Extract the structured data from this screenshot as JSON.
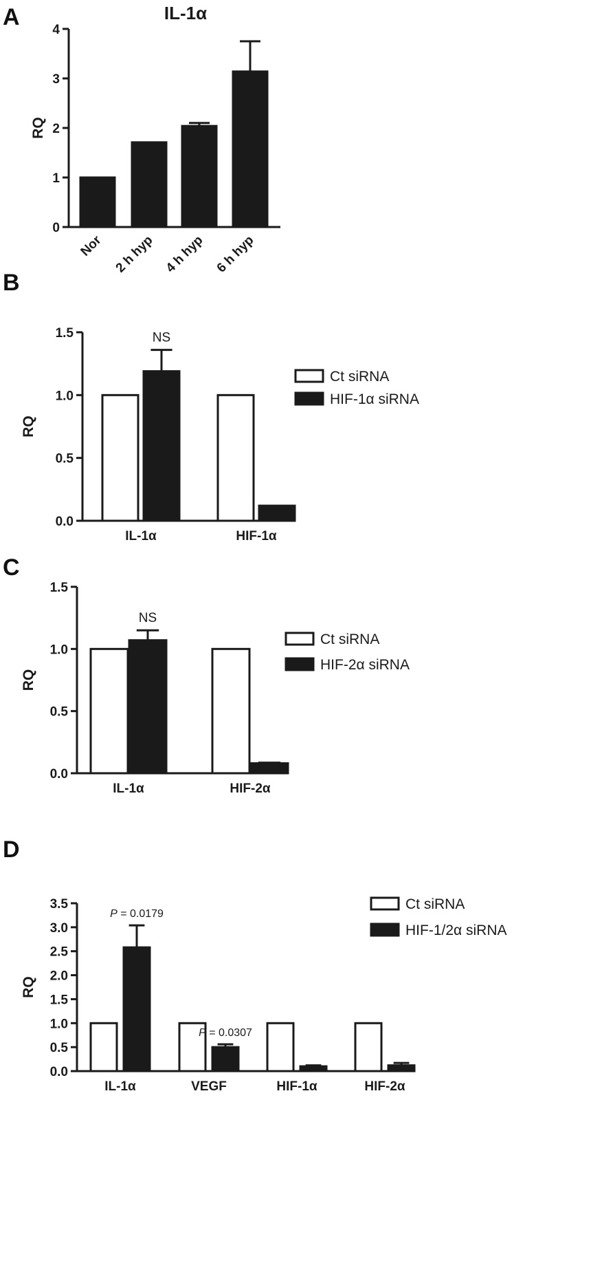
{
  "panels": {
    "A": "A",
    "B": "B",
    "C": "C",
    "D": "D"
  },
  "chart_data": [
    {
      "panel": "A",
      "type": "bar",
      "title": "IL-1α",
      "ylabel": "RQ",
      "xlabel": "",
      "ylim": [
        0,
        4
      ],
      "yticks": [
        "0",
        "1",
        "2",
        "3",
        "4"
      ],
      "categories": [
        "Nor",
        "2 h hyp",
        "4 h hyp",
        "6 h hyp"
      ],
      "category_label_rotation": "rotated 45°",
      "series": [
        {
          "values": [
            1.0,
            1.71,
            2.04,
            3.14
          ],
          "errors": [
            0,
            0,
            0.06,
            0.61
          ],
          "fill": "#1a1a1a"
        }
      ],
      "grid": false
    },
    {
      "panel": "B",
      "type": "bar",
      "title": "",
      "ylabel": "RQ",
      "ylim": [
        0,
        1.5
      ],
      "yticks": [
        "0.0",
        "0.5",
        "1.0",
        "1.5"
      ],
      "categories": [
        "IL-1α",
        "HIF-1α"
      ],
      "series": [
        {
          "name": "Ct siRNA",
          "values": [
            1.0,
            1.0
          ],
          "errors": [
            0,
            0
          ],
          "fill": "#ffffff"
        },
        {
          "name": "HIF-1α siRNA",
          "values": [
            1.19,
            0.12
          ],
          "errors": [
            0.17,
            0
          ],
          "fill": "#1a1a1a"
        }
      ],
      "annotations": [
        {
          "text": "NS",
          "category": "IL-1α",
          "series": 1
        }
      ],
      "legend": "right",
      "grid": false
    },
    {
      "panel": "C",
      "type": "bar",
      "title": "",
      "ylabel": "RQ",
      "ylim": [
        0,
        1.5
      ],
      "yticks": [
        "0.0",
        "0.5",
        "1.0",
        "1.5"
      ],
      "categories": [
        "IL-1α",
        "HIF-2α"
      ],
      "series": [
        {
          "name": "Ct siRNA",
          "values": [
            1.0,
            1.0
          ],
          "errors": [
            0,
            0
          ],
          "fill": "#ffffff"
        },
        {
          "name": "HIF-2α siRNA",
          "values": [
            1.07,
            0.08
          ],
          "errors": [
            0.08,
            0.005
          ],
          "fill": "#1a1a1a"
        }
      ],
      "annotations": [
        {
          "text": "NS",
          "category": "IL-1α",
          "series": 1
        }
      ],
      "legend": "right",
      "grid": false
    },
    {
      "panel": "D",
      "type": "bar",
      "title": "",
      "ylabel": "RQ",
      "ylim": [
        0,
        3.5
      ],
      "yticks": [
        "0.0",
        "0.5",
        "1.0",
        "1.5",
        "2.0",
        "2.5",
        "3.0",
        "3.5"
      ],
      "categories": [
        "IL-1α",
        "VEGF",
        "HIF-1α",
        "HIF-2α"
      ],
      "series": [
        {
          "name": "Ct siRNA",
          "values": [
            1.0,
            1.0,
            1.0,
            1.0
          ],
          "errors": [
            0,
            0,
            0,
            0
          ],
          "fill": "#ffffff"
        },
        {
          "name": "HIF-1/2α siRNA",
          "values": [
            2.58,
            0.5,
            0.1,
            0.12
          ],
          "errors": [
            0.46,
            0.06,
            0.02,
            0.05
          ],
          "fill": "#1a1a1a"
        }
      ],
      "annotations": [
        {
          "text": "P = 0.0179",
          "category": "IL-1α",
          "series": 1
        },
        {
          "text": "P = 0.0307",
          "category": "VEGF",
          "series": 1
        }
      ],
      "legend": "right",
      "grid": false
    }
  ]
}
